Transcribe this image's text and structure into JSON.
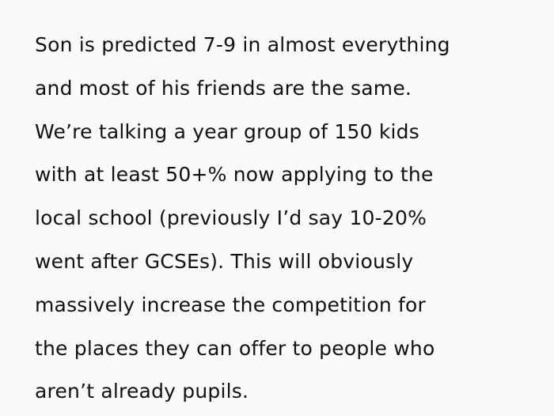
{
  "post": {
    "lines": [
      "Son is predicted 7-9 in almost everything",
      "and most of his friends are the same.",
      "We’re talking a year group of 150 kids",
      "with at least 50+% now applying to the",
      "local school (previously I’d say 10-20%",
      "went after GCSEs). This will obviously",
      "massively increase the competition for",
      "the places they can offer to people who",
      "aren’t already pupils."
    ]
  }
}
